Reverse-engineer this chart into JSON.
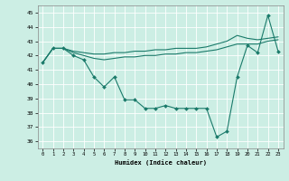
{
  "xlabel": "Humidex (Indice chaleur)",
  "ylabel": "",
  "bg_color": "#cceee4",
  "grid_color": "#aaddcc",
  "line_color": "#1a7a6a",
  "marker_color": "#1a7a6a",
  "xlim": [
    -0.5,
    23.5
  ],
  "ylim": [
    35.5,
    45.5
  ],
  "yticks": [
    36,
    37,
    38,
    39,
    40,
    41,
    42,
    43,
    44,
    45
  ],
  "xticks": [
    0,
    1,
    2,
    3,
    4,
    5,
    6,
    7,
    8,
    9,
    10,
    11,
    12,
    13,
    14,
    15,
    16,
    17,
    18,
    19,
    20,
    21,
    22,
    23
  ],
  "series1": [
    41.5,
    42.5,
    42.5,
    42.0,
    41.7,
    40.5,
    39.8,
    40.5,
    38.9,
    38.9,
    38.3,
    38.3,
    38.5,
    38.3,
    38.3,
    38.3,
    38.3,
    36.3,
    36.7,
    40.5,
    42.7,
    42.2,
    44.8,
    42.3
  ],
  "series2": [
    41.5,
    42.5,
    42.5,
    42.2,
    42.0,
    41.8,
    41.7,
    41.8,
    41.9,
    41.9,
    42.0,
    42.0,
    42.1,
    42.1,
    42.2,
    42.2,
    42.3,
    42.4,
    42.6,
    42.8,
    42.8,
    42.8,
    43.0,
    43.1
  ],
  "series3": [
    41.5,
    42.5,
    42.5,
    42.3,
    42.2,
    42.1,
    42.1,
    42.2,
    42.2,
    42.3,
    42.3,
    42.4,
    42.4,
    42.5,
    42.5,
    42.5,
    42.6,
    42.8,
    43.0,
    43.4,
    43.2,
    43.1,
    43.2,
    43.3
  ]
}
